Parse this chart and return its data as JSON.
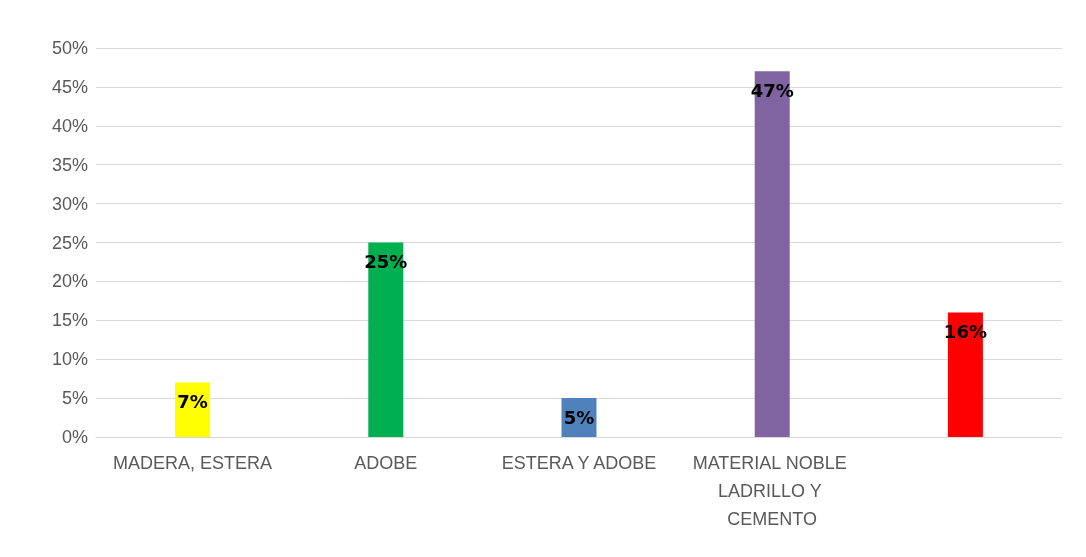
{
  "chart_data": {
    "type": "bar",
    "categories": [
      "MADERA, ESTERA",
      "ADOBE",
      "ESTERA Y ADOBE",
      "MATERIAL NOBLE LADRILLO Y CEMENTO",
      null
    ],
    "values": [
      7,
      25,
      5,
      47,
      16
    ],
    "colors": [
      "#ffff00",
      "#00b050",
      "#4f81bd",
      "#8064a2",
      "#ff0000"
    ],
    "ylim": [
      0,
      50
    ],
    "yticks": [
      {
        "value": 0,
        "label": "0%"
      },
      {
        "value": 5,
        "label": "5%"
      },
      {
        "value": 10,
        "label": "10%"
      },
      {
        "value": 15,
        "label": "15%"
      },
      {
        "value": 20,
        "label": "20%"
      },
      {
        "value": 25,
        "label": "25%"
      },
      {
        "value": 30,
        "label": "30%"
      },
      {
        "value": 35,
        "label": "35%"
      },
      {
        "value": 40,
        "label": "40%"
      },
      {
        "value": 45,
        "label": "45%"
      },
      {
        "value": 50,
        "label": "50%"
      }
    ],
    "value_labels": [
      "7%",
      "25%",
      "5%",
      "47%",
      "16%"
    ],
    "grid": true
  }
}
